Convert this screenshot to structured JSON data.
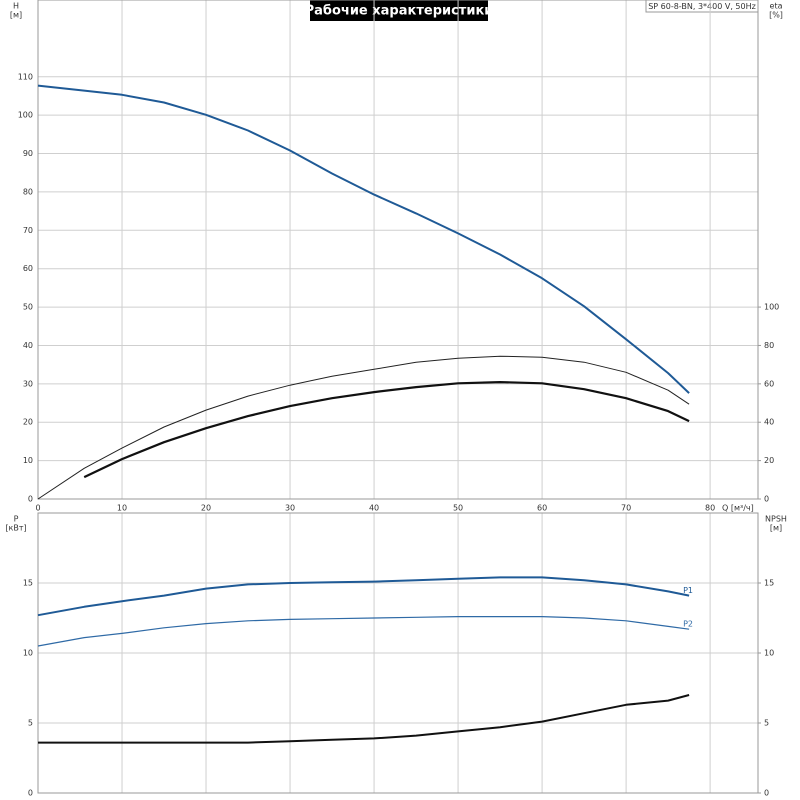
{
  "chart_data": [
    {
      "type": "line",
      "title": "Рабочие характеристики",
      "subtitle": "SP 60-8-BN, 3*400 V, 50Hz",
      "ylabel": "H",
      "yunit": "[м]",
      "y2label": "eta",
      "y2unit": "[%]",
      "xlabel": "Q [м³/ч]",
      "x": [
        0,
        5.5,
        10,
        15,
        20,
        25,
        30,
        35,
        40,
        45,
        50,
        55,
        60,
        65,
        70,
        75,
        77.5
      ],
      "xlim": [
        0,
        85.7
      ],
      "xticks": [
        0,
        10,
        20,
        30,
        40,
        50,
        60,
        70,
        80
      ],
      "ylim": [
        0,
        130
      ],
      "yticks": [
        0,
        10,
        20,
        30,
        40,
        50,
        60,
        70,
        80,
        90,
        100,
        110
      ],
      "y2lim": [
        0,
        260
      ],
      "y2ticks": [
        0,
        20,
        40,
        60,
        80,
        100
      ],
      "grid": true,
      "series": [
        {
          "color": "#1f5a96",
          "width": 2,
          "values": [
            107.7,
            106.4,
            105.3,
            103.3,
            100.1,
            96,
            90.8,
            84.8,
            79.3,
            74.4,
            69.2,
            63.7,
            57.5,
            50.2,
            41.6,
            32.8,
            27.6
          ]
        },
        {
          "color": "#222222",
          "width": 1,
          "axis": "y2",
          "values": [
            0,
            16,
            26.5,
            37.5,
            46.3,
            53.6,
            59.3,
            64,
            67.6,
            71.3,
            73.3,
            74.4,
            73.9,
            71.3,
            66,
            56.7,
            49.4
          ]
        },
        {
          "color": "#111111",
          "width": 2.2,
          "axis": "y2",
          "values": [
            null,
            11.4,
            20.8,
            29.6,
            36.9,
            43.2,
            48.4,
            52.5,
            55.7,
            58.3,
            60.3,
            60.9,
            60.3,
            57.2,
            52.5,
            45.8,
            40.6
          ]
        }
      ]
    },
    {
      "type": "line",
      "ylabel": "P",
      "yunit": "[кВт]",
      "y2label": "NPSH",
      "y2unit": "[м]",
      "x": [
        0,
        5.5,
        10,
        15,
        20,
        25,
        30,
        35,
        40,
        45,
        50,
        55,
        60,
        65,
        70,
        75,
        77.5
      ],
      "xlim": [
        0,
        85.7
      ],
      "ylim": [
        0,
        20
      ],
      "yticks": [
        0,
        5,
        10,
        15
      ],
      "y2lim": [
        0,
        20
      ],
      "y2ticks": [
        0,
        5,
        10,
        15
      ],
      "grid": true,
      "series": [
        {
          "name": "P1",
          "color": "#1f5a96",
          "width": 2,
          "values": [
            12.7,
            13.3,
            13.7,
            14.1,
            14.6,
            14.9,
            15.0,
            15.05,
            15.1,
            15.2,
            15.3,
            15.4,
            15.4,
            15.2,
            14.9,
            14.4,
            14.1
          ]
        },
        {
          "name": "P2",
          "color": "#2f6aa6",
          "width": 1.2,
          "values": [
            10.5,
            11.1,
            11.4,
            11.8,
            12.1,
            12.3,
            12.4,
            12.45,
            12.5,
            12.55,
            12.6,
            12.6,
            12.6,
            12.5,
            12.3,
            11.9,
            11.7
          ]
        },
        {
          "color": "#111111",
          "width": 2,
          "axis": "y2",
          "values": [
            3.6,
            3.6,
            3.6,
            3.6,
            3.6,
            3.6,
            3.7,
            3.8,
            3.9,
            4.1,
            4.4,
            4.7,
            5.1,
            5.7,
            6.3,
            6.6,
            7.0
          ]
        }
      ]
    }
  ]
}
